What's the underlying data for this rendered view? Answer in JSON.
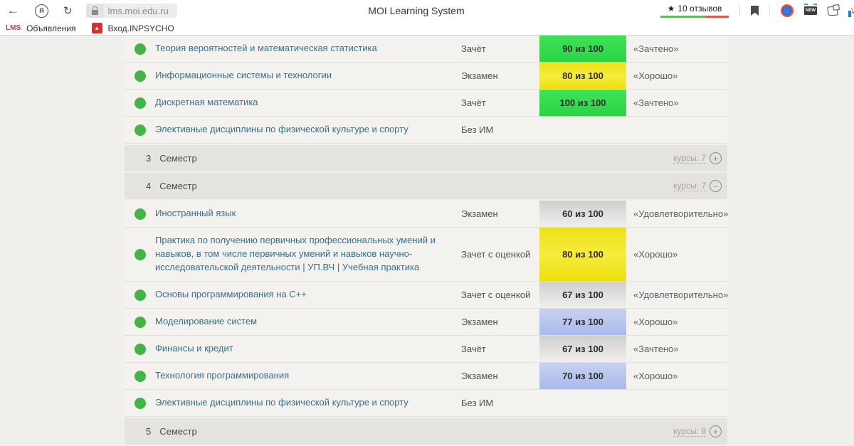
{
  "browser": {
    "url": "lms.moi.edu.ru",
    "page_title": "MOI Learning System",
    "reviews": {
      "star": "★",
      "label": "10 отзывов"
    },
    "icons": {
      "yandex_letter": "Я",
      "back": "←",
      "refresh": "↻",
      "new_label": "NEW",
      "download_arrow": "↓",
      "crest_glyph": "▲"
    },
    "bookmarks": [
      {
        "logo_text": "LMS",
        "label": "Объявления"
      },
      {
        "label": "Вход.INPSYCHO"
      }
    ]
  },
  "table": {
    "toggle_chars": {
      "plus": "+",
      "minus": "−"
    },
    "rows": [
      {
        "type": "course",
        "name": "Теория вероятностей и математическая статистика",
        "exam": "Зачёт",
        "score": "90 из 100",
        "score_color": "green",
        "grade": "«Зачтено»"
      },
      {
        "type": "course",
        "name": "Информационные системы и технологии",
        "exam": "Экзамен",
        "score": "80 из 100",
        "score_color": "yellow",
        "grade": "«Хорошо»"
      },
      {
        "type": "course",
        "name": "Дискретная математика",
        "exam": "Зачёт",
        "score": "100 из 100",
        "score_color": "green",
        "grade": "«Зачтено»"
      },
      {
        "type": "course",
        "name": "Элективные дисциплины по физической культуре и спорту",
        "exam": "Без ИМ",
        "score": "",
        "score_color": "",
        "grade": ""
      },
      {
        "type": "semester",
        "number": "3",
        "label": "Семестр",
        "courses_link": "курсы: 7",
        "toggle": "plus"
      },
      {
        "type": "semester",
        "number": "4",
        "label": "Семестр",
        "courses_link": "курсы: 7",
        "toggle": "minus"
      },
      {
        "type": "course",
        "name": "Иностранный язык",
        "exam": "Экзамен",
        "score": "60 из 100",
        "score_color": "gray",
        "grade": "«Удовлетворительно»"
      },
      {
        "type": "course",
        "tall": true,
        "name": "Практика по получению первичных профессиональных умений и навыков, в том числе первичных умений и навыков научно-исследовательской деятельности | УП.ВЧ | Учебная практика",
        "exam": "Зачет с оценкой",
        "score": "80 из 100",
        "score_color": "yellow",
        "grade": "«Хорошо»"
      },
      {
        "type": "course",
        "name": "Основы программирования на C++",
        "exam": "Зачет с оценкой",
        "score": "67 из 100",
        "score_color": "gray",
        "grade": "«Удовлетворительно»"
      },
      {
        "type": "course",
        "name": "Моделирование систем",
        "exam": "Экзамен",
        "score": "77 из 100",
        "score_color": "blue",
        "grade": "«Хорошо»"
      },
      {
        "type": "course",
        "name": "Финансы и кредит",
        "exam": "Зачёт",
        "score": "67 из 100",
        "score_color": "gray",
        "grade": "«Зачтено»"
      },
      {
        "type": "course",
        "name": "Технология программирования",
        "exam": "Экзамен",
        "score": "70 из 100",
        "score_color": "blue",
        "grade": "«Хорошо»"
      },
      {
        "type": "course",
        "name": "Элективные дисциплины по физической культуре и спорту",
        "exam": "Без ИМ",
        "score": "",
        "score_color": "",
        "grade": ""
      },
      {
        "type": "semester",
        "number": "5",
        "label": "Семестр",
        "courses_link": "курсы: 8",
        "toggle": "plus"
      }
    ]
  },
  "colors": {
    "score_green": "#30d948",
    "score_yellow": "#f0e41c",
    "score_gray": "#d9d8d6",
    "score_blue": "#b4c2ee",
    "status_dot_green": "#41b546",
    "course_link": "#33708f",
    "semester_row_bg": "#e5e3de",
    "page_bg": "#f1efeb",
    "reviews_bar_green": "#64b765",
    "reviews_bar_red": "#e2574b",
    "bookmark_logo_red": "#d7392b"
  }
}
